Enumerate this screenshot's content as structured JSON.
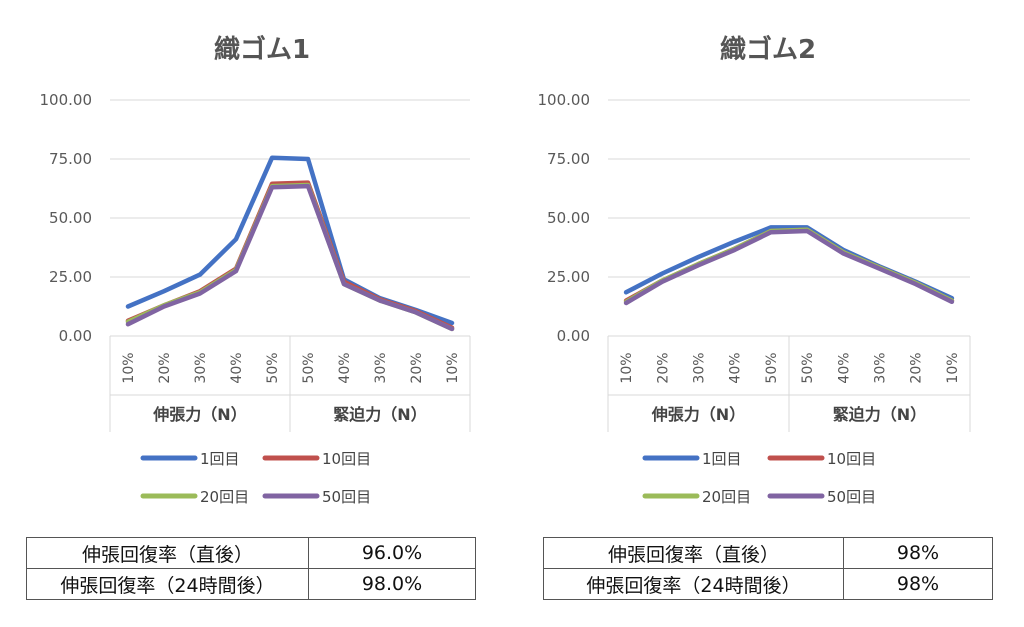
{
  "chart_data": [
    {
      "type": "line",
      "title": "織ゴム1",
      "categories": [
        "10%",
        "20%",
        "30%",
        "40%",
        "50%",
        "50%",
        "40%",
        "30%",
        "20%",
        "10%"
      ],
      "groups": [
        "伸張力（N）",
        "緊迫力（N）"
      ],
      "ylim": [
        0,
        100
      ],
      "yticks": [
        "100.00",
        "75.00",
        "50.00",
        "25.00",
        "0.00"
      ],
      "series": [
        {
          "name": "1回目",
          "color": "#4472C4",
          "values": [
            12.5,
            19,
            26,
            41,
            75.5,
            75,
            24,
            16,
            11,
            5.5
          ]
        },
        {
          "name": "10回目",
          "color": "#C0504D",
          "values": [
            6.5,
            13,
            19,
            28.5,
            64.5,
            65,
            23,
            15.5,
            10.5,
            3.5
          ]
        },
        {
          "name": "20回目",
          "color": "#9BBB59",
          "values": [
            6,
            13,
            18.5,
            28,
            63.5,
            64,
            22,
            15,
            10,
            3
          ]
        },
        {
          "name": "50回目",
          "color": "#8064A2",
          "values": [
            5,
            12.5,
            18,
            27.5,
            63,
            63.5,
            22,
            15,
            10,
            3
          ]
        }
      ],
      "legend": "bottom",
      "table": [
        {
          "label": "伸張回復率（直後）",
          "value": "96.0%"
        },
        {
          "label": "伸張回復率（24時間後）",
          "value": "98.0%"
        }
      ]
    },
    {
      "type": "line",
      "title": "織ゴム2",
      "categories": [
        "10%",
        "20%",
        "30%",
        "40%",
        "50%",
        "50%",
        "40%",
        "30%",
        "20%",
        "10%"
      ],
      "groups": [
        "伸張力（N）",
        "緊迫力（N）"
      ],
      "ylim": [
        0,
        100
      ],
      "yticks": [
        "100.00",
        "75.00",
        "50.00",
        "25.00",
        "0.00"
      ],
      "series": [
        {
          "name": "1回目",
          "color": "#4472C4",
          "values": [
            18.5,
            26.5,
            33.5,
            40,
            46,
            46,
            36.5,
            29.5,
            23,
            16
          ]
        },
        {
          "name": "10回目",
          "color": "#C0504D",
          "values": [
            15,
            23.5,
            30.5,
            37,
            44.5,
            45,
            35.5,
            29,
            22.5,
            15
          ]
        },
        {
          "name": "20回目",
          "color": "#9BBB59",
          "values": [
            14.5,
            23.5,
            30.5,
            37,
            44.5,
            45,
            35.5,
            29,
            22.5,
            15
          ]
        },
        {
          "name": "50回目",
          "color": "#8064A2",
          "values": [
            14,
            23,
            30,
            36.5,
            44,
            44.5,
            35,
            28.5,
            22,
            14.5
          ]
        }
      ],
      "legend": "bottom",
      "table": [
        {
          "label": "伸張回復率（直後）",
          "value": "98%"
        },
        {
          "label": "伸張回復率（24時間後）",
          "value": "98%"
        }
      ]
    }
  ]
}
